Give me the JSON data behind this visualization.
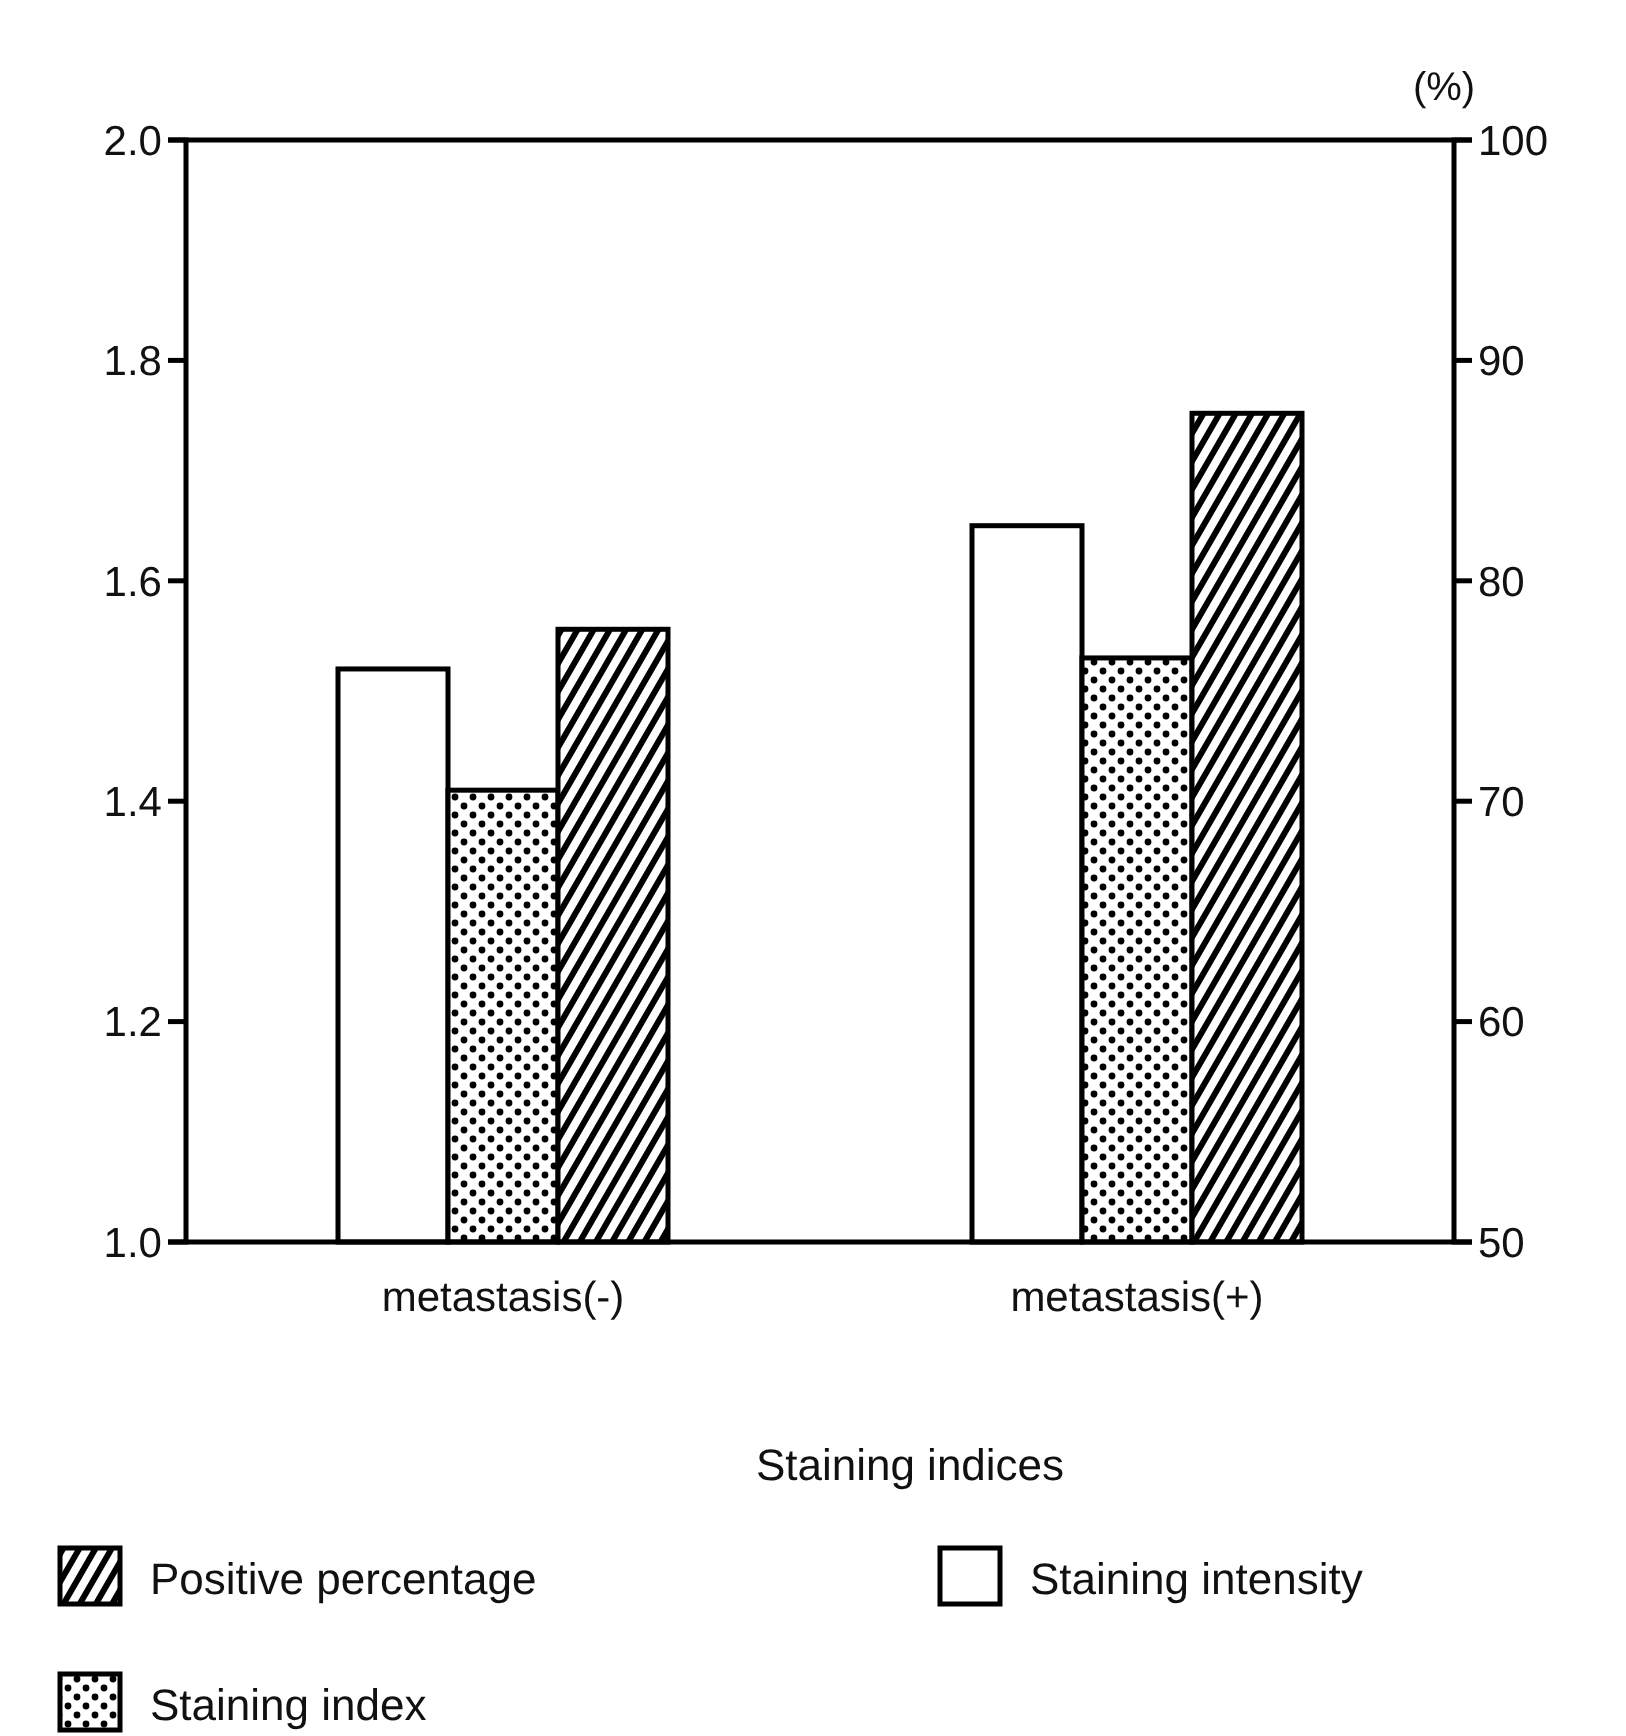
{
  "chart_data": {
    "type": "bar",
    "categories": [
      "metastasis(-)",
      "metastasis(+)"
    ],
    "xlabel": "Staining indices",
    "y2label": "(%)",
    "ylim": [
      1.0,
      2.0
    ],
    "yticks": [
      {
        "value": 1.0,
        "label": "1.0"
      },
      1.2,
      1.4,
      1.6,
      1.8,
      {
        "value": 2.0,
        "label": "2.0"
      }
    ],
    "y2lim": [
      50,
      100
    ],
    "y2ticks": [
      50,
      60,
      70,
      80,
      90,
      100
    ],
    "series": [
      {
        "name": "Staining intensity",
        "color": "#ffffff",
        "values": [
          1.52,
          1.65
        ]
      },
      {
        "name": "Staining index",
        "color": "#000000",
        "values": [
          1.41,
          1.53
        ]
      },
      {
        "name": "Positive percentage",
        "color": "#000000",
        "values": [
          77.8,
          87.6
        ],
        "axis": "y2"
      }
    ],
    "legend": "bottom",
    "grid": false
  }
}
